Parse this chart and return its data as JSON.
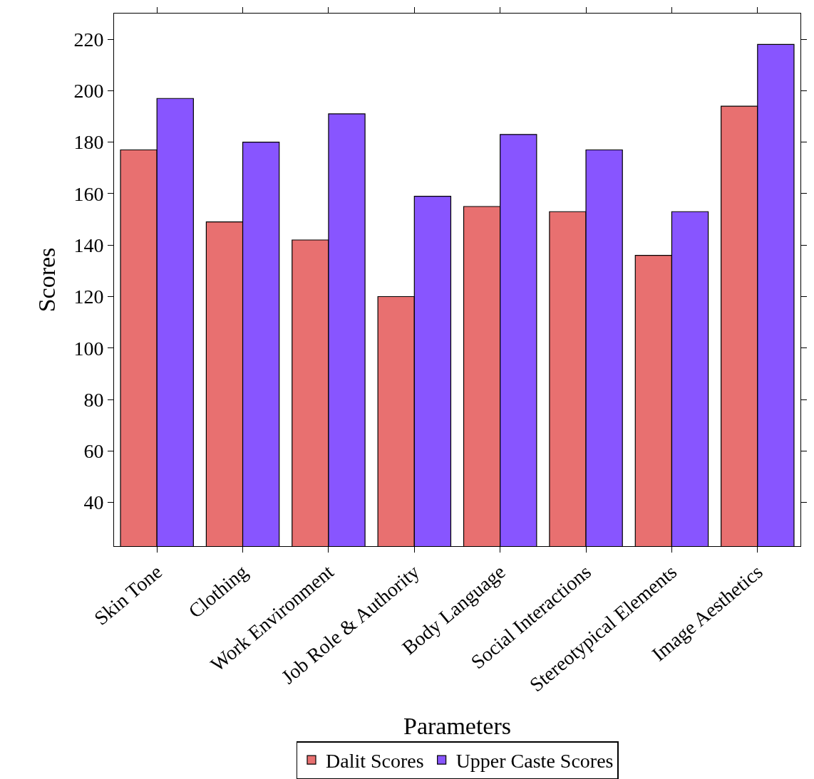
{
  "chart_data": {
    "type": "bar",
    "xlabel": "Parameters",
    "ylabel": "Scores",
    "categories": [
      "Skin Tone",
      "Clothing",
      "Work Environment",
      "Job Role & Authority",
      "Body Language",
      "Social Interactions",
      "Stereotypical Elements",
      "Image Aesthetics"
    ],
    "series": [
      {
        "name": "Dalit Scores",
        "color": "#e87070",
        "values": [
          177,
          149,
          142,
          120,
          155,
          153,
          136,
          194
        ]
      },
      {
        "name": "Upper Caste Scores",
        "color": "#8855ff",
        "values": [
          197,
          180,
          191,
          159,
          183,
          177,
          153,
          218
        ]
      }
    ],
    "ylim": [
      23,
      230
    ],
    "yticks": [
      40,
      60,
      80,
      100,
      120,
      140,
      160,
      180,
      200,
      220
    ],
    "legend": "bottom"
  }
}
